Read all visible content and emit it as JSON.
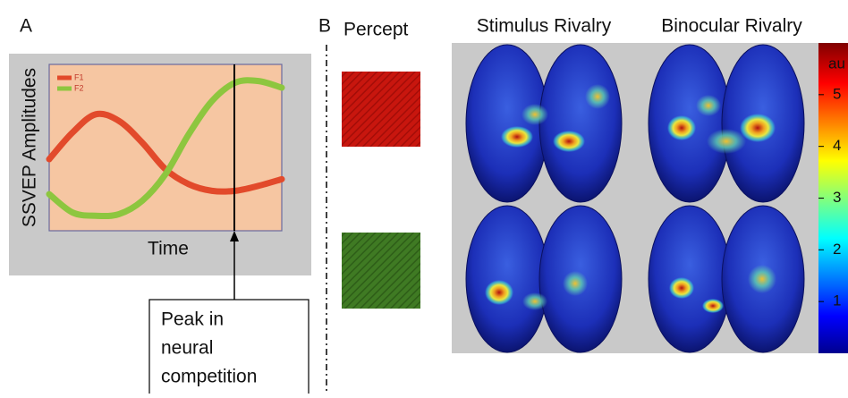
{
  "panel_labels": [
    "A",
    "B"
  ],
  "chart_data": {
    "type": "line",
    "x_label": "Time",
    "y_label": "SSVEP Amplitudes",
    "x": [
      0,
      1,
      2,
      3,
      4,
      5,
      6,
      7,
      8,
      9,
      10
    ],
    "xlim": [
      0,
      10
    ],
    "ylim": [
      0,
      10
    ],
    "series": [
      {
        "name": "F1",
        "color": "#e24a2b",
        "values": [
          4.3,
          5.9,
          7.0,
          6.6,
          5.3,
          3.7,
          2.8,
          2.4,
          2.4,
          2.7,
          3.1
        ]
      },
      {
        "name": "F2",
        "color": "#8dc63f",
        "values": [
          2.2,
          1.1,
          0.9,
          1.0,
          1.8,
          3.4,
          5.8,
          7.8,
          8.9,
          9.0,
          8.6
        ]
      }
    ]
  },
  "annotation": [
    "Peak in",
    "neural",
    "competition"
  ],
  "percept_label": "Percept",
  "conditions": [
    "Stimulus Rivalry",
    "Binocular Rivalry"
  ],
  "colorbar": {
    "label": "au",
    "lim": [
      0,
      6
    ],
    "ticks": [
      1,
      2,
      3,
      4,
      5
    ]
  }
}
